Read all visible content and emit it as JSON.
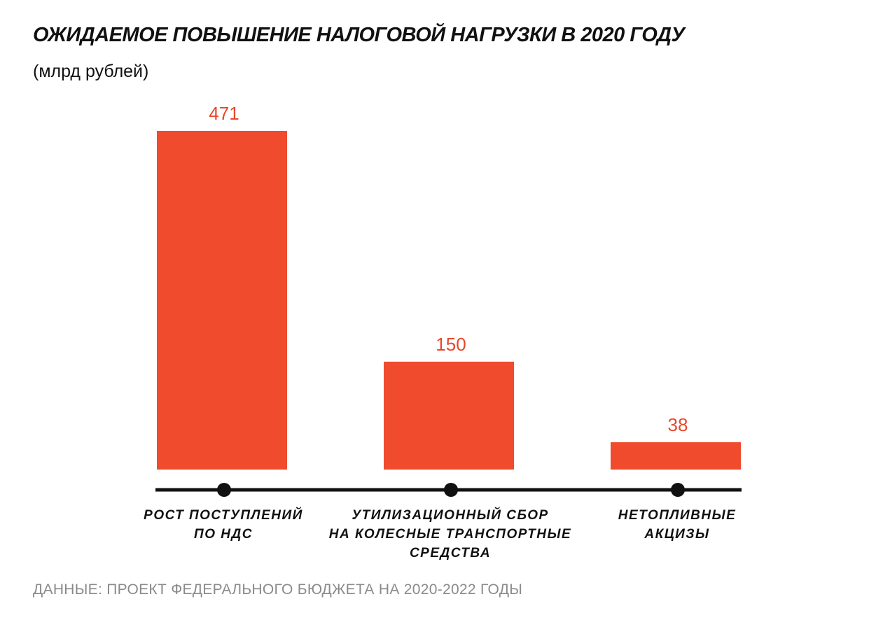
{
  "title": "ОЖИДАЕМОЕ ПОВЫШЕНИЕ НАЛОГОВОЙ НАГРУЗКИ В 2020 ГОДУ",
  "subtitle": "(млрд рублей)",
  "source": "ДАННЫЕ: ПРОЕКТ ФЕДЕРАЛЬНОГО БЮДЖЕТА НА 2020-2022 ГОДЫ",
  "colors": {
    "bar": "#f04b2d",
    "value_label": "#e8472b",
    "axis": "#111111",
    "text": "#111111",
    "source": "#8a8a8a"
  },
  "chart_data": {
    "type": "bar",
    "categories": [
      [
        "РОСТ ПОСТУПЛЕНИЙ",
        "ПО НДС"
      ],
      [
        "УТИЛИЗАЦИОННЫЙ СБОР",
        "НА КОЛЕСНЫЕ ТРАНСПОРТНЫЕ",
        "СРЕДСТВА"
      ],
      [
        "НЕТОПЛИВНЫЕ",
        "АКЦИЗЫ"
      ]
    ],
    "values": [
      471,
      150,
      38
    ],
    "value_labels": [
      "471",
      "150",
      "38"
    ],
    "ylim": [
      0,
      471
    ],
    "grid": false,
    "legend": "none"
  }
}
